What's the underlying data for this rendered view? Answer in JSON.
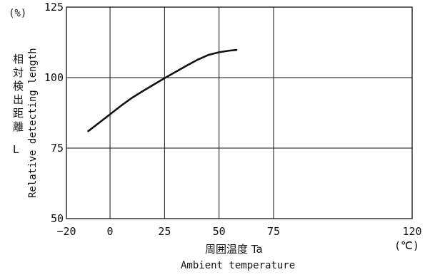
{
  "chart_data": {
    "type": "line",
    "title": "",
    "xlabel_jp": "周囲温度 Ta",
    "xlabel": "Ambient temperature",
    "x_unit": "(℃)",
    "ylabel_jp": "相対検出距離 L",
    "ylabel": "Relative detecting length",
    "y_unit": "(%)",
    "xlim": [
      -20,
      120
    ],
    "ylim": [
      50,
      125
    ],
    "x_ticks": [
      "−20",
      "0",
      "25",
      "50",
      "75",
      "120"
    ],
    "y_ticks": [
      "125",
      "100",
      "75",
      "50"
    ],
    "grid": true,
    "series": [
      {
        "x": [
          -10,
          -5,
          0,
          5,
          10,
          15,
          20,
          25,
          30,
          35,
          40,
          45,
          50,
          55,
          58
        ],
        "y": [
          81,
          84,
          87,
          90,
          92.8,
          95.2,
          97.5,
          99.8,
          102,
          104.2,
          106.3,
          108,
          109,
          109.6,
          109.8
        ]
      }
    ]
  }
}
